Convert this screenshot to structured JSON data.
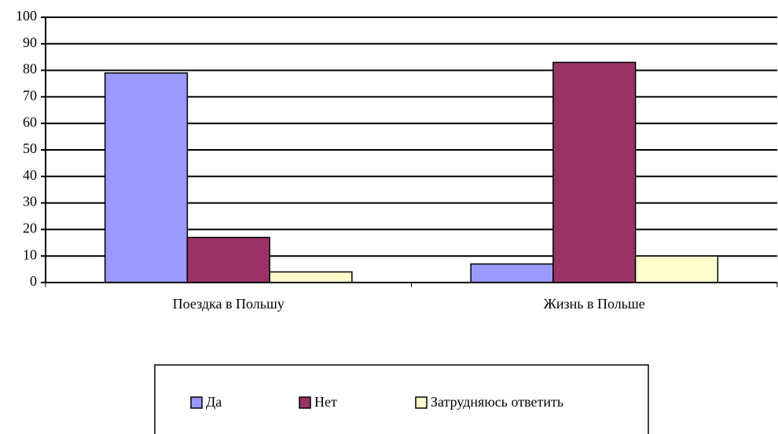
{
  "chart_data": {
    "type": "bar",
    "categories": [
      "Поездка в Польшу",
      "Жизнь в Польше"
    ],
    "series": [
      {
        "name": "Да",
        "color": "#9999ff",
        "values": [
          79,
          7
        ]
      },
      {
        "name": "Нет",
        "color": "#993366",
        "values": [
          17,
          83
        ]
      },
      {
        "name": "Затрудняюсь ответить",
        "color": "#ffffcc",
        "values": [
          4,
          10
        ]
      }
    ],
    "ylim": [
      0,
      100
    ],
    "yticks": [
      0,
      10,
      20,
      30,
      40,
      50,
      60,
      70,
      80,
      90,
      100
    ],
    "grid": true,
    "legend": "bottom"
  }
}
